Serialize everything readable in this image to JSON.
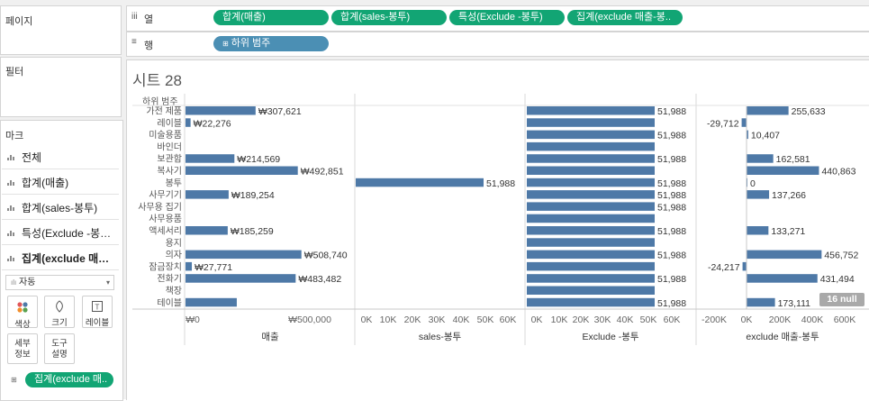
{
  "left": {
    "pages_title": "페이지",
    "filters_title": "필터",
    "marks_title": "마크",
    "mark_cards": [
      {
        "label": "전체",
        "bold": false
      },
      {
        "label": "합계(매출)",
        "bold": false
      },
      {
        "label": "합계(sales-봉투)",
        "bold": false
      },
      {
        "label": "특성(Exclude -봉…",
        "bold": false
      },
      {
        "label": "집계(exclude 매…",
        "bold": true
      }
    ],
    "mark_type": "자동",
    "buttons": [
      {
        "label": "색상",
        "icon": "color-icon"
      },
      {
        "label": "크기",
        "icon": "size-icon"
      },
      {
        "label": "레이블",
        "icon": "label-icon"
      },
      {
        "label": "세부\n정보",
        "icon": ""
      },
      {
        "label": "도구\n설명",
        "icon": ""
      }
    ],
    "color_pill": "집계(exclude 매.."
  },
  "shelves": {
    "columns_label": "열",
    "rows_label": "행",
    "column_pills": [
      "합계(매출)",
      "합계(sales-봉투)",
      "특성(Exclude -봉투)",
      "집계(exclude 매출-봉.."
    ],
    "row_pill": "하위 범주"
  },
  "sheet": {
    "title": "시트 28",
    "row_header": "하위 범주",
    "null_badge": "16 null"
  },
  "chart_data": {
    "type": "bar",
    "categories": [
      "가전 제품",
      "레이블",
      "미술용품",
      "바인더",
      "보관함",
      "복사기",
      "봉투",
      "사무기기",
      "사무용 집기",
      "사무용품",
      "액세서리",
      "용지",
      "의자",
      "잠금장치",
      "전화기",
      "책장",
      "테이블"
    ],
    "panes": [
      {
        "name": "매출",
        "values": [
          307621,
          22276,
          null,
          null,
          214569,
          492851,
          null,
          189254,
          null,
          null,
          185259,
          null,
          508740,
          27771,
          483482,
          null,
          225099
        ],
        "labels": [
          "₩307,621",
          "₩22,276",
          "",
          "",
          "₩214,569",
          "₩492,851",
          "",
          "₩189,254",
          "",
          "",
          "₩185,259",
          "",
          "₩508,740",
          "₩27,771",
          "₩483,482",
          "",
          ""
        ],
        "ticks": [
          "₩0",
          "₩500,000"
        ]
      },
      {
        "name": "sales-봉투",
        "values": [
          null,
          null,
          null,
          null,
          null,
          null,
          51988,
          null,
          null,
          null,
          null,
          null,
          null,
          null,
          null,
          null,
          null
        ],
        "labels": [
          "",
          "",
          "",
          "",
          "",
          "",
          "51,988",
          "",
          "",
          "",
          "",
          "",
          "",
          "",
          "",
          "",
          ""
        ],
        "ticks": [
          "0K",
          "10K",
          "20K",
          "30K",
          "40K",
          "50K",
          "60K"
        ]
      },
      {
        "name": "Exclude -봉투",
        "values": [
          51988,
          51988,
          51988,
          51988,
          51988,
          51988,
          51988,
          51988,
          51988,
          51988,
          51988,
          51988,
          51988,
          51988,
          51988,
          51988,
          51988
        ],
        "labels": [
          "51,988",
          "",
          "51,988",
          "",
          "51,988",
          "",
          "51,988",
          "51,988",
          "51,988",
          "",
          "51,988",
          "",
          "51,988",
          "",
          "51,988",
          "",
          "51,988"
        ],
        "ticks": [
          "0K",
          "10K",
          "20K",
          "30K",
          "40K",
          "50K",
          "60K"
        ]
      },
      {
        "name": "exclude 매출-봉투",
        "values": [
          255633,
          -29712,
          10407,
          null,
          162581,
          440863,
          0,
          137266,
          null,
          null,
          133271,
          null,
          456752,
          -24217,
          431494,
          null,
          173111
        ],
        "labels": [
          "255,633",
          "-29,712",
          "10,407",
          "",
          "162,581",
          "440,863",
          "0",
          "137,266",
          "",
          "",
          "133,271",
          "",
          "456,752",
          "-24,217",
          "431,494",
          "",
          "173,111"
        ],
        "ticks": [
          "-200K",
          "0K",
          "200K",
          "400K",
          "600K"
        ]
      }
    ],
    "bar_color": "#4e79a7"
  }
}
